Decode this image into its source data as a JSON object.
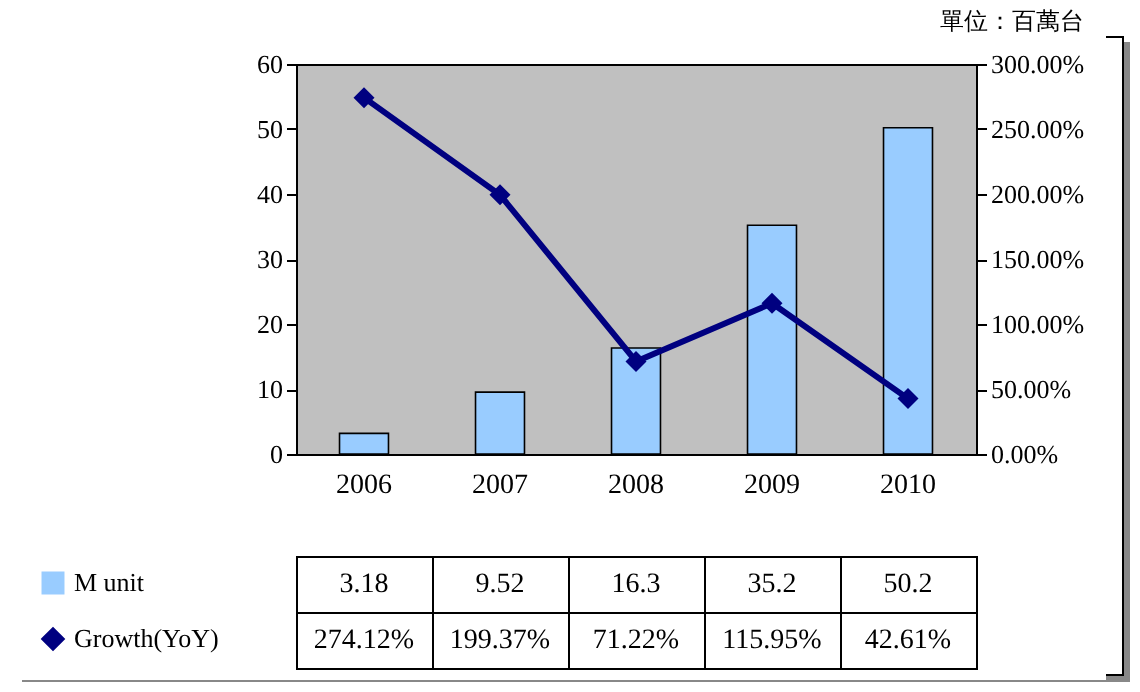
{
  "chart_data": {
    "type": "bar",
    "annotations": [
      "單位：百萬台"
    ],
    "categories": [
      "2006",
      "2007",
      "2008",
      "2009",
      "2010"
    ],
    "series": [
      {
        "name": "M unit",
        "color": "#99ccff",
        "values": [
          3.18,
          9.52,
          16.3,
          35.2,
          50.2
        ],
        "value_labels": [
          "3.18",
          "9.52",
          "16.3",
          "35.2",
          "50.2"
        ]
      },
      {
        "name": "Growth(YoY)",
        "type": "line",
        "axis": "y2",
        "color": "#000080",
        "values": [
          274.12,
          199.37,
          71.22,
          115.95,
          42.61
        ],
        "value_labels": [
          "274.12%",
          "199.37%",
          "71.22%",
          "115.95%",
          "42.61%"
        ]
      }
    ],
    "ylim": [
      0,
      60
    ],
    "yticks": [
      0,
      10,
      20,
      30,
      40,
      50,
      60
    ],
    "y2lim": [
      0,
      300
    ],
    "y2ticks": [
      {
        "value": 0,
        "label": "0.00%"
      },
      {
        "value": 50,
        "label": "50.00%"
      },
      {
        "value": 100,
        "label": "100.00%"
      },
      {
        "value": 150,
        "label": "150.00%"
      },
      {
        "value": 200,
        "label": "200.00%"
      },
      {
        "value": 250,
        "label": "250.00%"
      },
      {
        "value": 300,
        "label": "300.00%"
      }
    ],
    "marker": "diamond",
    "legend": "bottom left"
  }
}
